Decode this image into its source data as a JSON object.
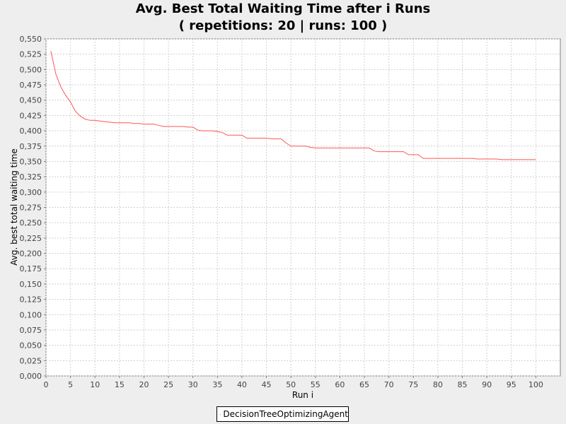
{
  "chart_data": {
    "type": "line",
    "title": "Avg. Best Total Waiting Time after i Runs",
    "subtitle": "( repetitions: 20 | runs: 100 )",
    "xlabel": "Run i",
    "ylabel": "Avg. best total waiting time",
    "xlim": [
      0,
      105
    ],
    "ylim": [
      0,
      0.55
    ],
    "xticks": [
      0,
      5,
      10,
      15,
      20,
      25,
      30,
      35,
      40,
      45,
      50,
      55,
      60,
      65,
      70,
      75,
      80,
      85,
      90,
      95,
      100
    ],
    "yticks": [
      0,
      0.025,
      0.05,
      0.075,
      0.1,
      0.125,
      0.15,
      0.175,
      0.2,
      0.225,
      0.25,
      0.275,
      0.3,
      0.325,
      0.35,
      0.375,
      0.4,
      0.425,
      0.45,
      0.475,
      0.5,
      0.525,
      0.55
    ],
    "ytick_labels": [
      "0,000",
      "0,025",
      "0,050",
      "0,075",
      "0,100",
      "0,125",
      "0,150",
      "0,175",
      "0,200",
      "0,225",
      "0,250",
      "0,275",
      "0,300",
      "0,325",
      "0,350",
      "0,375",
      "0,400",
      "0,425",
      "0,450",
      "0,475",
      "0,500",
      "0,525",
      "0,550"
    ],
    "grid": true,
    "legend_position": "bottom",
    "series": [
      {
        "name": "DecisionTreeOptimizingAgent",
        "color": "#ff5555",
        "x": [
          1,
          2,
          3,
          4,
          5,
          6,
          7,
          8,
          9,
          10,
          11,
          12,
          13,
          14,
          15,
          16,
          17,
          18,
          19,
          20,
          21,
          22,
          23,
          24,
          25,
          26,
          27,
          28,
          29,
          30,
          31,
          32,
          33,
          34,
          35,
          36,
          37,
          38,
          39,
          40,
          41,
          42,
          43,
          44,
          45,
          46,
          47,
          48,
          49,
          50,
          51,
          52,
          53,
          54,
          55,
          56,
          57,
          58,
          59,
          60,
          61,
          62,
          63,
          64,
          65,
          66,
          67,
          68,
          69,
          70,
          71,
          72,
          73,
          74,
          75,
          76,
          77,
          78,
          79,
          80,
          81,
          82,
          83,
          84,
          85,
          86,
          87,
          88,
          89,
          90,
          91,
          92,
          93,
          94,
          95,
          96,
          97,
          98,
          99,
          100
        ],
        "y": [
          0.53,
          0.493,
          0.472,
          0.458,
          0.447,
          0.432,
          0.424,
          0.419,
          0.417,
          0.417,
          0.416,
          0.415,
          0.414,
          0.413,
          0.413,
          0.413,
          0.413,
          0.412,
          0.412,
          0.411,
          0.411,
          0.411,
          0.409,
          0.407,
          0.407,
          0.407,
          0.407,
          0.407,
          0.406,
          0.406,
          0.401,
          0.4,
          0.4,
          0.4,
          0.399,
          0.397,
          0.393,
          0.393,
          0.393,
          0.393,
          0.388,
          0.388,
          0.388,
          0.388,
          0.388,
          0.387,
          0.387,
          0.387,
          0.38,
          0.375,
          0.375,
          0.375,
          0.375,
          0.373,
          0.372,
          0.372,
          0.372,
          0.372,
          0.372,
          0.372,
          0.372,
          0.372,
          0.372,
          0.372,
          0.372,
          0.372,
          0.367,
          0.366,
          0.366,
          0.366,
          0.366,
          0.366,
          0.366,
          0.361,
          0.361,
          0.361,
          0.355,
          0.355,
          0.355,
          0.355,
          0.355,
          0.355,
          0.355,
          0.355,
          0.355,
          0.355,
          0.355,
          0.354,
          0.354,
          0.354,
          0.354,
          0.354,
          0.353,
          0.353,
          0.353,
          0.353,
          0.353,
          0.353,
          0.353,
          0.353
        ]
      }
    ]
  }
}
